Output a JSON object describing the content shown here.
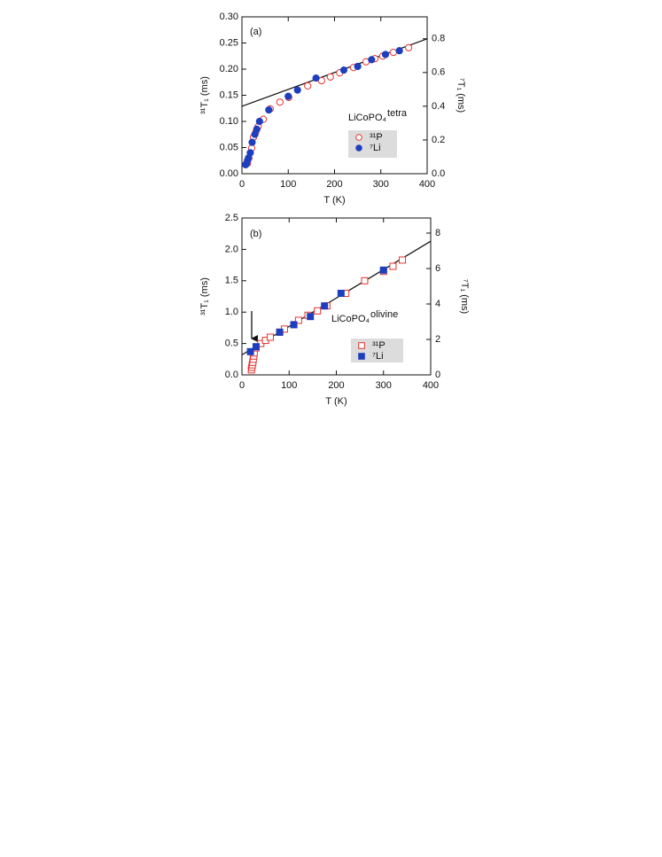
{
  "chart_data": [
    {
      "type": "scatter",
      "panel_label": "(a)",
      "sample_label": "LiCoPO₄",
      "sample_phase": "tetra",
      "xlabel": "T (K)",
      "ylabel": "³¹T₁ (ms)",
      "y2label": "⁷T₁ (ms)",
      "xlim": [
        0,
        400
      ],
      "xticks": [
        0,
        100,
        200,
        300,
        400
      ],
      "ylim": [
        0,
        0.3
      ],
      "yticks": [
        {
          "value": 0,
          "label": "0.00"
        },
        0.05,
        {
          "value": 0.1,
          "label": "0.10"
        },
        0.15,
        {
          "value": 0.2,
          "label": "0.20"
        },
        0.25,
        {
          "value": 0.3,
          "label": "0.30"
        }
      ],
      "y2lim": [
        0,
        0.93
      ],
      "y2ticks": [
        {
          "value": 0,
          "label": "0.0"
        },
        0.2,
        0.4,
        0.6,
        0.8
      ],
      "series": [
        {
          "name": "³¹P",
          "color": "#e3342f",
          "marker": "circle",
          "filled": false,
          "x": [
            12,
            15,
            21,
            25,
            30,
            35,
            46,
            61,
            82,
            101,
            142,
            172,
            191,
            211,
            241,
            268,
            287,
            304,
            327,
            360
          ],
          "values": [
            0.02,
            0.03,
            0.049,
            0.07,
            0.08,
            0.09,
            0.104,
            0.124,
            0.137,
            0.146,
            0.168,
            0.178,
            0.185,
            0.193,
            0.203,
            0.214,
            0.22,
            0.225,
            0.232,
            0.241
          ]
        },
        {
          "name": "⁷Li",
          "color": "#1d3fbf",
          "marker": "circle",
          "filled": true,
          "axis": "y2",
          "x": [
            8,
            10,
            12,
            14,
            18,
            22,
            28,
            32,
            38,
            58,
            100,
            120,
            160,
            220,
            250,
            280,
            310,
            340
          ],
          "values": [
            0.053,
            0.062,
            0.078,
            0.093,
            0.124,
            0.186,
            0.233,
            0.264,
            0.31,
            0.378,
            0.459,
            0.496,
            0.567,
            0.614,
            0.636,
            0.676,
            0.707,
            0.729
          ]
        }
      ],
      "fit": {
        "x": [
          0,
          400
        ],
        "values": [
          0.129,
          0.258
        ]
      }
    },
    {
      "type": "scatter",
      "panel_label": "(b)",
      "sample_label": "LiCoPO₄",
      "sample_phase": "olivine",
      "xlabel": "T (K)",
      "ylabel": "³¹T₁ (ms)",
      "y2label": "⁷T₁ (ms)",
      "xlim": [
        0,
        400
      ],
      "xticks": [
        0,
        100,
        200,
        300,
        400
      ],
      "ylim": [
        0,
        2.5
      ],
      "yticks": [
        {
          "value": 0,
          "label": "0.0"
        },
        0.5,
        {
          "value": 1,
          "label": "1.0"
        },
        1.5,
        {
          "value": 2,
          "label": "2.0"
        },
        2.5
      ],
      "y2lim": [
        0,
        8.85
      ],
      "y2ticks": [
        0,
        2,
        4,
        6,
        8
      ],
      "series": [
        {
          "name": "³¹P",
          "color": "#e3342f",
          "marker": "square",
          "filled": false,
          "x": [
            20,
            21,
            22,
            23,
            24,
            25,
            26,
            30,
            40,
            50,
            60,
            80,
            90,
            110,
            120,
            140,
            160,
            180,
            220,
            260,
            300,
            320,
            340
          ],
          "values": [
            0.08,
            0.12,
            0.16,
            0.2,
            0.25,
            0.3,
            0.35,
            0.43,
            0.5,
            0.55,
            0.6,
            0.68,
            0.73,
            0.8,
            0.87,
            0.95,
            1.02,
            1.1,
            1.3,
            1.5,
            1.65,
            1.73,
            1.83
          ]
        },
        {
          "name": "⁷Li",
          "color": "#1d3fbf",
          "marker": "square",
          "filled": true,
          "axis": "y2",
          "x": [
            18,
            30,
            80,
            110,
            145,
            175,
            210,
            300
          ],
          "values": [
            1.31,
            1.59,
            2.41,
            2.83,
            3.29,
            3.89,
            4.6,
            5.91
          ]
        }
      ],
      "fit": {
        "x": [
          0,
          400
        ],
        "values": [
          0.32,
          2.13
        ]
      }
    }
  ]
}
